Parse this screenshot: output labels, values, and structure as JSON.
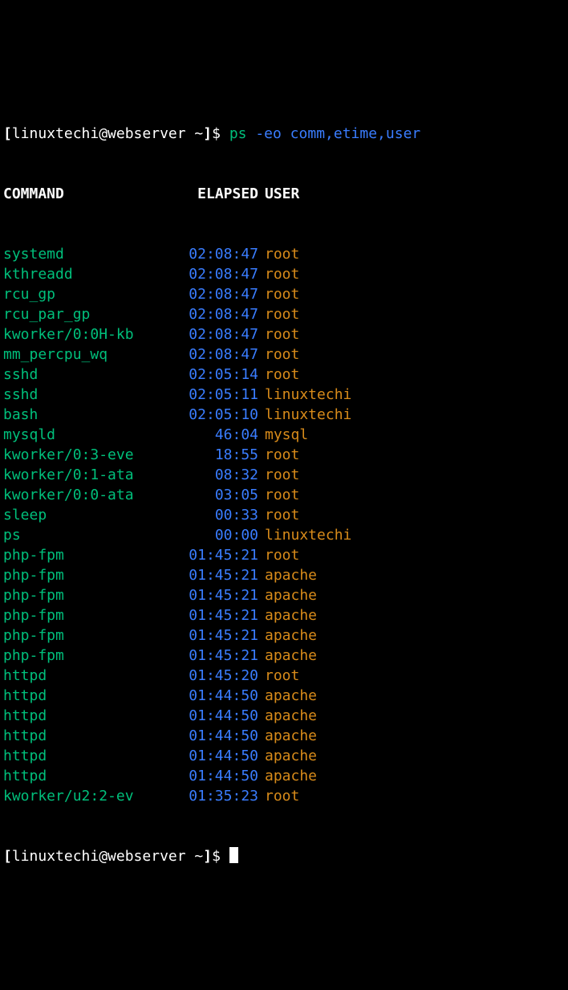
{
  "prompt": {
    "open": "[",
    "userhost": "linuxtechi@webserver",
    "cwd": " ~",
    "close": "]",
    "dollar": "$ "
  },
  "command_line": {
    "cmd": "ps",
    "args": " -eo comm,etime,user"
  },
  "header": {
    "col1": "COMMAND",
    "col2": "ELAPSED",
    "col3": "USER"
  },
  "rows": [
    {
      "command": "systemd",
      "elapsed": "02:08:47",
      "user": "root"
    },
    {
      "command": "kthreadd",
      "elapsed": "02:08:47",
      "user": "root"
    },
    {
      "command": "rcu_gp",
      "elapsed": "02:08:47",
      "user": "root"
    },
    {
      "command": "rcu_par_gp",
      "elapsed": "02:08:47",
      "user": "root"
    },
    {
      "command": "kworker/0:0H-kb",
      "elapsed": "02:08:47",
      "user": "root"
    },
    {
      "command": "mm_percpu_wq",
      "elapsed": "02:08:47",
      "user": "root"
    },
    {
      "command": "sshd",
      "elapsed": "02:05:14",
      "user": "root"
    },
    {
      "command": "sshd",
      "elapsed": "02:05:11",
      "user": "linuxtechi"
    },
    {
      "command": "bash",
      "elapsed": "02:05:10",
      "user": "linuxtechi"
    },
    {
      "command": "mysqld",
      "elapsed": "46:04",
      "user": "mysql"
    },
    {
      "command": "kworker/0:3-eve",
      "elapsed": "18:55",
      "user": "root"
    },
    {
      "command": "kworker/0:1-ata",
      "elapsed": "08:32",
      "user": "root"
    },
    {
      "command": "kworker/0:0-ata",
      "elapsed": "03:05",
      "user": "root"
    },
    {
      "command": "sleep",
      "elapsed": "00:33",
      "user": "root"
    },
    {
      "command": "ps",
      "elapsed": "00:00",
      "user": "linuxtechi"
    },
    {
      "command": "php-fpm",
      "elapsed": "01:45:21",
      "user": "root"
    },
    {
      "command": "php-fpm",
      "elapsed": "01:45:21",
      "user": "apache"
    },
    {
      "command": "php-fpm",
      "elapsed": "01:45:21",
      "user": "apache"
    },
    {
      "command": "php-fpm",
      "elapsed": "01:45:21",
      "user": "apache"
    },
    {
      "command": "php-fpm",
      "elapsed": "01:45:21",
      "user": "apache"
    },
    {
      "command": "php-fpm",
      "elapsed": "01:45:21",
      "user": "apache"
    },
    {
      "command": "httpd",
      "elapsed": "01:45:20",
      "user": "root"
    },
    {
      "command": "httpd",
      "elapsed": "01:44:50",
      "user": "apache"
    },
    {
      "command": "httpd",
      "elapsed": "01:44:50",
      "user": "apache"
    },
    {
      "command": "httpd",
      "elapsed": "01:44:50",
      "user": "apache"
    },
    {
      "command": "httpd",
      "elapsed": "01:44:50",
      "user": "apache"
    },
    {
      "command": "httpd",
      "elapsed": "01:44:50",
      "user": "apache"
    },
    {
      "command": "kworker/u2:2-ev",
      "elapsed": "01:35:23",
      "user": "root"
    }
  ]
}
